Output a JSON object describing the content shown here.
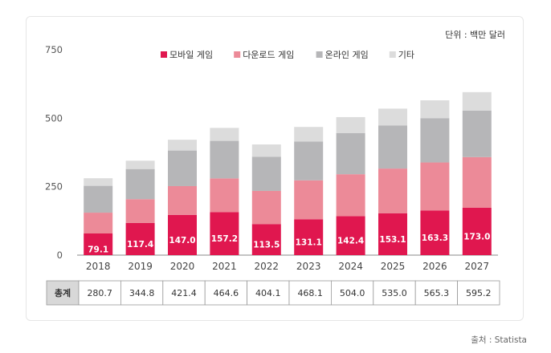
{
  "chart_data": {
    "type": "bar",
    "stacked": true,
    "categories": [
      "2018",
      "2019",
      "2020",
      "2021",
      "2022",
      "2023",
      "2024",
      "2025",
      "2026",
      "2027"
    ],
    "series": [
      {
        "name": "모바일 게임",
        "color": "#e0174f",
        "values": [
          79.1,
          117.4,
          147.0,
          157.2,
          113.5,
          131.1,
          142.4,
          153.1,
          163.3,
          173.0
        ]
      },
      {
        "name": "다운로드 게임",
        "color": "#ec8a98",
        "values": [
          76,
          87,
          105,
          123,
          121,
          142,
          153,
          163,
          175,
          185
        ]
      },
      {
        "name": "온라인 게임",
        "color": "#b6b6b8",
        "values": [
          98,
          110,
          130,
          137,
          125,
          142,
          150,
          157,
          162,
          170
        ]
      },
      {
        "name": "기타",
        "color": "#dcdcdc",
        "values": [
          27.6,
          30.4,
          39.4,
          47.4,
          44.6,
          53.0,
          58.6,
          61.9,
          65.0,
          67.2
        ]
      }
    ],
    "ylim": [
      0,
      750
    ],
    "yticks": [
      0,
      250,
      500,
      750
    ],
    "unit_label": "단위 : 백만 달러",
    "total_label": "총계",
    "totals": [
      "280.7",
      "344.8",
      "421.4",
      "464.6",
      "404.1",
      "468.1",
      "504.0",
      "535.0",
      "565.3",
      "595.2"
    ],
    "source": "출처 : Statista",
    "legend_position": "top"
  }
}
